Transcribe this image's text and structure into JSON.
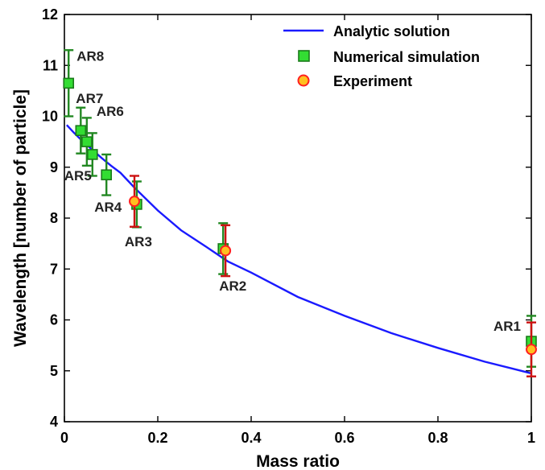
{
  "chart_data": {
    "type": "scatter",
    "xlabel": "Mass ratio",
    "ylabel": "Wavelength [number of particle]",
    "xlim": [
      0,
      1
    ],
    "ylim": [
      4,
      12
    ],
    "xticks": [
      0,
      0.2,
      0.4,
      0.6,
      0.8,
      1
    ],
    "xtick_labels": [
      "0",
      "0.2",
      "0.4",
      "0.6",
      "0.8",
      "1"
    ],
    "yticks": [
      4,
      5,
      6,
      7,
      8,
      9,
      10,
      11,
      12
    ],
    "ytick_labels": [
      "4",
      "5",
      "6",
      "7",
      "8",
      "9",
      "10",
      "11",
      "12"
    ],
    "grid": false,
    "legend_position": "top-right",
    "colors": {
      "analytic": "#1a1aff",
      "sim_fill": "#33dd33",
      "sim_edge": "#1a7a1a",
      "sim_err": "#228822",
      "exp_fill": "#ffc020",
      "exp_edge": "#ff2020",
      "exp_err": "#cc1111"
    },
    "series": [
      {
        "name": "Analytic solution",
        "kind": "line",
        "x": [
          0.005,
          0.02,
          0.04,
          0.06,
          0.08,
          0.1,
          0.12,
          0.15,
          0.2,
          0.25,
          0.3,
          0.35,
          0.4,
          0.5,
          0.6,
          0.7,
          0.8,
          0.9,
          1.0
        ],
        "y": [
          9.83,
          9.68,
          9.5,
          9.34,
          9.18,
          9.03,
          8.89,
          8.6,
          8.15,
          7.76,
          7.46,
          7.15,
          6.93,
          6.45,
          6.08,
          5.74,
          5.45,
          5.18,
          4.95
        ]
      },
      {
        "name": "Numerical simulation",
        "kind": "marker-square",
        "x": [
          0.009,
          0.035,
          0.048,
          0.06,
          0.09,
          0.155,
          0.34,
          1.0
        ],
        "y": [
          10.65,
          9.72,
          9.5,
          9.25,
          8.85,
          8.27,
          7.4,
          5.58
        ],
        "err": [
          0.65,
          0.45,
          0.47,
          0.42,
          0.4,
          0.45,
          0.5,
          0.5
        ],
        "labels": [
          "AR8",
          "AR7",
          "AR6",
          "AR5",
          "AR4",
          "AR3",
          "AR2",
          "AR1"
        ]
      },
      {
        "name": "Experiment",
        "kind": "marker-circle",
        "x": [
          0.15,
          0.345,
          1.0
        ],
        "y": [
          8.33,
          7.36,
          5.42
        ],
        "err": [
          0.5,
          0.5,
          0.53
        ]
      }
    ]
  }
}
